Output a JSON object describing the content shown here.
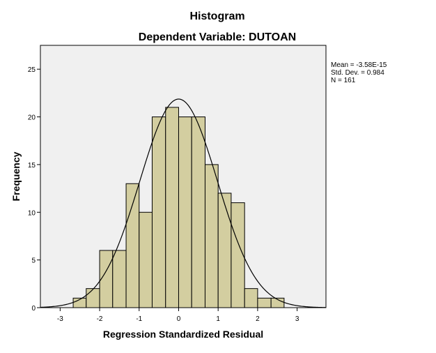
{
  "chart_data": {
    "type": "bar",
    "title": "Histogram",
    "subtitle": "Dependent Variable: DUTOAN",
    "xlabel": "Regression Standardized Residual",
    "ylabel": "Frequency",
    "xlim": [
      -3.5,
      3.73
    ],
    "ylim": [
      0,
      27.5
    ],
    "x_ticks": [
      -3,
      -2,
      -1,
      0,
      1,
      2,
      3
    ],
    "y_ticks": [
      0,
      5,
      10,
      15,
      20,
      25
    ],
    "bins": [
      {
        "start": -2.67,
        "end": -2.34,
        "count": 1
      },
      {
        "start": -2.34,
        "end": -2.0,
        "count": 2
      },
      {
        "start": -2.0,
        "end": -1.67,
        "count": 6
      },
      {
        "start": -1.67,
        "end": -1.33,
        "count": 6
      },
      {
        "start": -1.33,
        "end": -1.0,
        "count": 13
      },
      {
        "start": -1.0,
        "end": -0.67,
        "count": 10
      },
      {
        "start": -0.67,
        "end": -0.33,
        "count": 20
      },
      {
        "start": -0.33,
        "end": 0.0,
        "count": 21
      },
      {
        "start": 0.0,
        "end": 0.33,
        "count": 20
      },
      {
        "start": 0.33,
        "end": 0.67,
        "count": 20
      },
      {
        "start": 0.67,
        "end": 1.0,
        "count": 15
      },
      {
        "start": 1.0,
        "end": 1.33,
        "count": 12
      },
      {
        "start": 1.33,
        "end": 1.67,
        "count": 11
      },
      {
        "start": 1.67,
        "end": 2.0,
        "count": 2
      },
      {
        "start": 2.0,
        "end": 2.34,
        "count": 1
      },
      {
        "start": 2.34,
        "end": 2.67,
        "count": 1
      }
    ],
    "normal_curve": {
      "mean": -3.58e-15,
      "std_dev": 0.984,
      "n": 161,
      "bin_width": 0.335
    },
    "stats_lines": [
      "Mean = -3.58E-15",
      "Std. Dev. = 0.984",
      "N = 161"
    ],
    "colors": {
      "bar_fill": "#d3cea0",
      "bar_stroke": "#000000",
      "plot_bg": "#f0f0f0",
      "curve": "#000000"
    }
  }
}
